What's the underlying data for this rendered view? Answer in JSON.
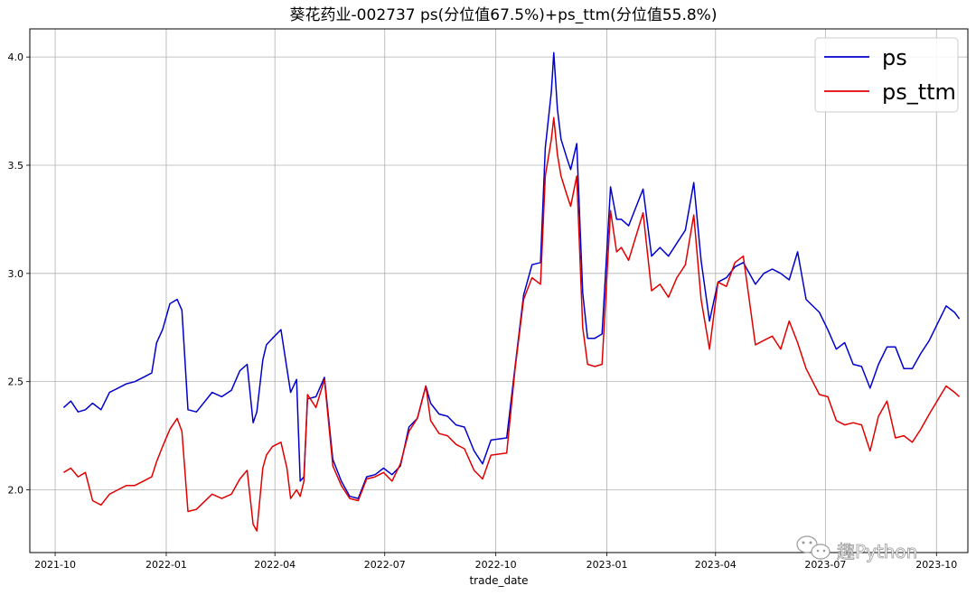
{
  "chart_data": {
    "type": "line",
    "title": "葵花药业-002737 ps(分位值67.5%)+ps_ttm(分位值55.8%)",
    "xlabel": "trade_date",
    "ylabel": "",
    "x_ticks": [
      "2021-10",
      "2022-01",
      "2022-04",
      "2022-07",
      "2022-10",
      "2023-01",
      "2023-04",
      "2023-07",
      "2023-10"
    ],
    "y_ticks": [
      "2.0",
      "2.5",
      "3.0",
      "3.5",
      "4.0"
    ],
    "xlim": [
      "2021-09-10",
      "2023-10-27"
    ],
    "ylim": [
      1.71,
      4.13
    ],
    "grid": true,
    "legend": "top-right",
    "series": [
      {
        "name": "ps",
        "color": "#0000cc",
        "x": [
          "2021-10-08",
          "2021-10-14",
          "2021-10-20",
          "2021-10-26",
          "2021-11-01",
          "2021-11-08",
          "2021-11-15",
          "2021-11-22",
          "2021-11-29",
          "2021-12-06",
          "2021-12-13",
          "2021-12-20",
          "2021-12-24",
          "2021-12-29",
          "2022-01-04",
          "2022-01-10",
          "2022-01-14",
          "2022-01-19",
          "2022-01-26",
          "2022-02-08",
          "2022-02-16",
          "2022-02-24",
          "2022-03-03",
          "2022-03-09",
          "2022-03-14",
          "2022-03-17",
          "2022-03-22",
          "2022-03-25",
          "2022-03-30",
          "2022-04-06",
          "2022-04-11",
          "2022-04-14",
          "2022-04-19",
          "2022-04-22",
          "2022-04-25",
          "2022-04-28",
          "2022-05-05",
          "2022-05-12",
          "2022-05-19",
          "2022-05-26",
          "2022-06-02",
          "2022-06-09",
          "2022-06-16",
          "2022-06-23",
          "2022-06-30",
          "2022-07-07",
          "2022-07-14",
          "2022-07-21",
          "2022-07-28",
          "2022-08-04",
          "2022-08-08",
          "2022-08-15",
          "2022-08-22",
          "2022-08-29",
          "2022-09-05",
          "2022-09-13",
          "2022-09-20",
          "2022-09-27",
          "2022-10-10",
          "2022-10-17",
          "2022-10-24",
          "2022-10-31",
          "2022-11-07",
          "2022-11-11",
          "2022-11-16",
          "2022-11-18",
          "2022-11-21",
          "2022-11-24",
          "2022-11-29",
          "2022-12-02",
          "2022-12-07",
          "2022-12-12",
          "2022-12-16",
          "2022-12-22",
          "2022-12-28",
          "2023-01-04",
          "2023-01-09",
          "2023-01-13",
          "2023-01-19",
          "2023-01-31",
          "2023-02-07",
          "2023-02-14",
          "2023-02-21",
          "2023-02-28",
          "2023-03-07",
          "2023-03-14",
          "2023-03-20",
          "2023-03-27",
          "2023-04-03",
          "2023-04-10",
          "2023-04-17",
          "2023-04-24",
          "2023-05-04",
          "2023-05-11",
          "2023-05-18",
          "2023-05-25",
          "2023-06-01",
          "2023-06-08",
          "2023-06-15",
          "2023-06-26",
          "2023-07-03",
          "2023-07-10",
          "2023-07-17",
          "2023-07-24",
          "2023-07-31",
          "2023-08-07",
          "2023-08-14",
          "2023-08-21",
          "2023-08-28",
          "2023-09-04",
          "2023-09-11",
          "2023-09-18",
          "2023-09-25",
          "2023-10-09",
          "2023-10-16",
          "2023-10-20"
        ],
        "values": [
          2.38,
          2.41,
          2.36,
          2.37,
          2.4,
          2.37,
          2.45,
          2.47,
          2.49,
          2.5,
          2.52,
          2.54,
          2.68,
          2.74,
          2.86,
          2.88,
          2.83,
          2.37,
          2.36,
          2.45,
          2.43,
          2.46,
          2.55,
          2.58,
          2.31,
          2.36,
          2.6,
          2.67,
          2.7,
          2.74,
          2.56,
          2.45,
          2.51,
          2.04,
          2.06,
          2.42,
          2.43,
          2.52,
          2.14,
          2.04,
          1.97,
          1.96,
          2.06,
          2.07,
          2.1,
          2.07,
          2.11,
          2.29,
          2.33,
          2.48,
          2.4,
          2.35,
          2.34,
          2.3,
          2.29,
          2.18,
          2.12,
          2.23,
          2.24,
          2.57,
          2.9,
          3.04,
          3.05,
          3.58,
          3.84,
          4.02,
          3.76,
          3.62,
          3.53,
          3.48,
          3.6,
          2.91,
          2.7,
          2.7,
          2.72,
          3.4,
          3.25,
          3.25,
          3.22,
          3.39,
          3.08,
          3.12,
          3.08,
          3.14,
          3.2,
          3.42,
          3.06,
          2.78,
          2.96,
          2.98,
          3.03,
          3.05,
          2.95,
          3.0,
          3.02,
          3.0,
          2.97,
          3.1,
          2.88,
          2.82,
          2.74,
          2.65,
          2.68,
          2.58,
          2.57,
          2.47,
          2.58,
          2.66,
          2.66,
          2.56,
          2.56,
          2.63,
          2.69,
          2.85,
          2.82,
          2.79
        ]
      },
      {
        "name": "ps_ttm",
        "color": "#e00000",
        "x": [
          "2021-10-08",
          "2021-10-14",
          "2021-10-20",
          "2021-10-26",
          "2021-11-01",
          "2021-11-08",
          "2021-11-15",
          "2021-11-22",
          "2021-11-29",
          "2021-12-06",
          "2021-12-13",
          "2021-12-20",
          "2021-12-24",
          "2021-12-29",
          "2022-01-04",
          "2022-01-10",
          "2022-01-14",
          "2022-01-19",
          "2022-01-26",
          "2022-02-08",
          "2022-02-16",
          "2022-02-24",
          "2022-03-03",
          "2022-03-09",
          "2022-03-14",
          "2022-03-17",
          "2022-03-22",
          "2022-03-25",
          "2022-03-30",
          "2022-04-06",
          "2022-04-11",
          "2022-04-14",
          "2022-04-19",
          "2022-04-22",
          "2022-04-25",
          "2022-04-28",
          "2022-05-05",
          "2022-05-12",
          "2022-05-19",
          "2022-05-26",
          "2022-06-02",
          "2022-06-09",
          "2022-06-16",
          "2022-06-23",
          "2022-06-30",
          "2022-07-07",
          "2022-07-14",
          "2022-07-21",
          "2022-07-28",
          "2022-08-04",
          "2022-08-08",
          "2022-08-15",
          "2022-08-22",
          "2022-08-29",
          "2022-09-05",
          "2022-09-13",
          "2022-09-20",
          "2022-09-27",
          "2022-10-10",
          "2022-10-17",
          "2022-10-24",
          "2022-10-31",
          "2022-11-07",
          "2022-11-11",
          "2022-11-16",
          "2022-11-18",
          "2022-11-21",
          "2022-11-24",
          "2022-11-29",
          "2022-12-02",
          "2022-12-07",
          "2022-12-12",
          "2022-12-16",
          "2022-12-22",
          "2022-12-28",
          "2023-01-04",
          "2023-01-09",
          "2023-01-13",
          "2023-01-19",
          "2023-01-31",
          "2023-02-07",
          "2023-02-14",
          "2023-02-21",
          "2023-02-28",
          "2023-03-07",
          "2023-03-14",
          "2023-03-20",
          "2023-03-27",
          "2023-04-03",
          "2023-04-10",
          "2023-04-17",
          "2023-04-24",
          "2023-05-04",
          "2023-05-11",
          "2023-05-18",
          "2023-05-25",
          "2023-06-01",
          "2023-06-08",
          "2023-06-15",
          "2023-06-26",
          "2023-07-03",
          "2023-07-10",
          "2023-07-17",
          "2023-07-24",
          "2023-07-31",
          "2023-08-07",
          "2023-08-14",
          "2023-08-21",
          "2023-08-28",
          "2023-09-04",
          "2023-09-11",
          "2023-09-18",
          "2023-09-25",
          "2023-10-09",
          "2023-10-16",
          "2023-10-20"
        ],
        "values": [
          2.08,
          2.1,
          2.06,
          2.08,
          1.95,
          1.93,
          1.98,
          2.0,
          2.02,
          2.02,
          2.04,
          2.06,
          2.13,
          2.2,
          2.28,
          2.33,
          2.27,
          1.9,
          1.91,
          1.98,
          1.96,
          1.98,
          2.05,
          2.09,
          1.84,
          1.81,
          2.1,
          2.16,
          2.2,
          2.22,
          2.1,
          1.96,
          2.0,
          1.97,
          2.04,
          2.44,
          2.38,
          2.51,
          2.11,
          2.02,
          1.96,
          1.95,
          2.05,
          2.06,
          2.08,
          2.04,
          2.12,
          2.27,
          2.33,
          2.48,
          2.32,
          2.26,
          2.25,
          2.21,
          2.19,
          2.09,
          2.05,
          2.16,
          2.17,
          2.56,
          2.88,
          2.98,
          2.95,
          3.45,
          3.62,
          3.72,
          3.55,
          3.45,
          3.36,
          3.31,
          3.45,
          2.75,
          2.58,
          2.57,
          2.58,
          3.29,
          3.1,
          3.12,
          3.06,
          3.28,
          2.92,
          2.95,
          2.89,
          2.98,
          3.04,
          3.27,
          2.88,
          2.65,
          2.96,
          2.94,
          3.05,
          3.08,
          2.67,
          2.69,
          2.71,
          2.65,
          2.78,
          2.68,
          2.56,
          2.44,
          2.43,
          2.32,
          2.3,
          2.31,
          2.3,
          2.18,
          2.34,
          2.41,
          2.24,
          2.25,
          2.22,
          2.28,
          2.35,
          2.48,
          2.45,
          2.43
        ]
      }
    ]
  },
  "watermark": {
    "text": "趣Python",
    "icon": "wechat-icon"
  }
}
